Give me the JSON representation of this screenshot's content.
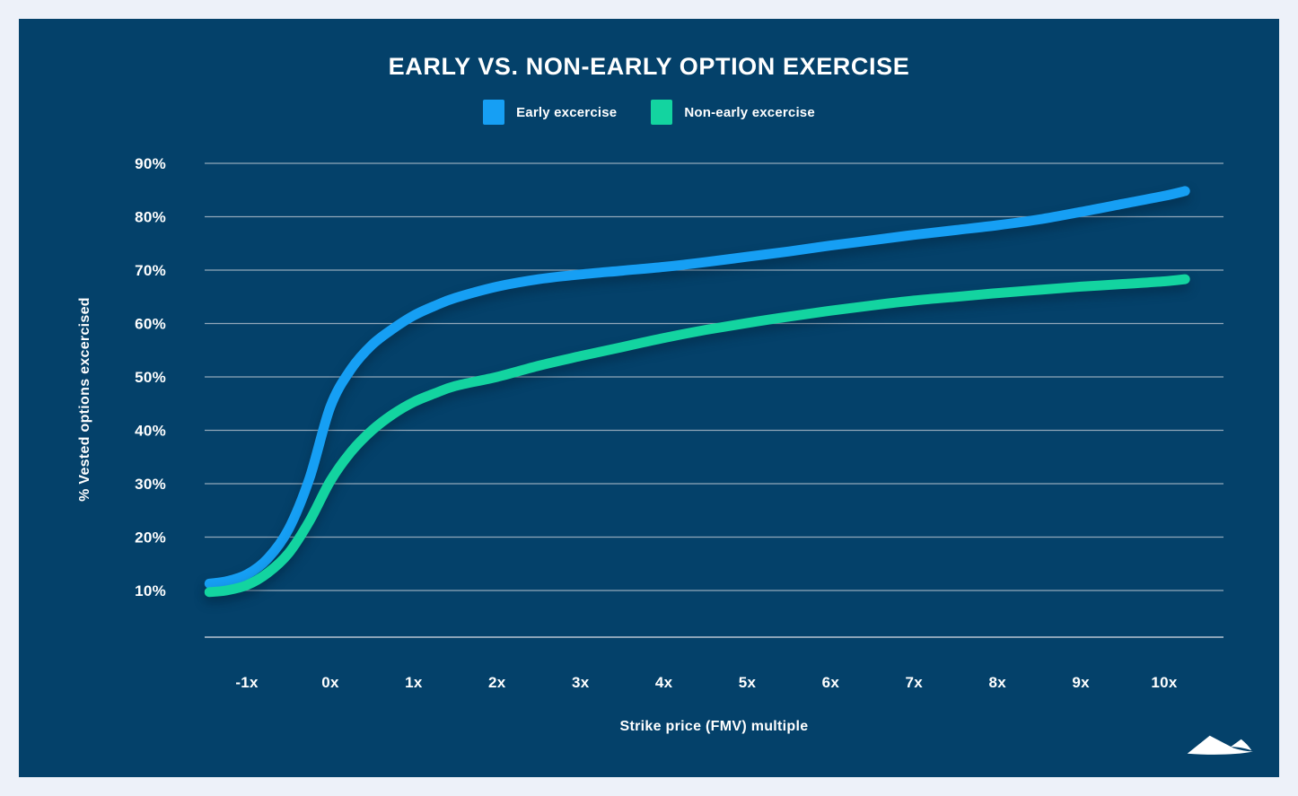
{
  "frame": {
    "background_color": "#edf1f9",
    "panel_color": "#04416a"
  },
  "header": {
    "title": "EARLY VS. NON-EARLY OPTION EXERCISE"
  },
  "chart_data": {
    "type": "line",
    "title": "EARLY VS. NON-EARLY OPTION EXERCISE",
    "xlabel": "Strike price (FMV) multiple",
    "ylabel": "% Vested options excercised",
    "x_ticks": [
      "-1x",
      "0x",
      "1x",
      "2x",
      "3x",
      "4x",
      "5x",
      "6x",
      "7x",
      "8x",
      "9x",
      "10x"
    ],
    "x_tick_values": [
      -1,
      0,
      1,
      2,
      3,
      4,
      5,
      6,
      7,
      8,
      9,
      10
    ],
    "y_ticks": [
      "10%",
      "20%",
      "30%",
      "40%",
      "50%",
      "60%",
      "70%",
      "80%",
      "90%"
    ],
    "y_tick_values": [
      10,
      20,
      30,
      40,
      50,
      60,
      70,
      80,
      90
    ],
    "xlim": [
      -1.6,
      10.5
    ],
    "ylim": [
      0,
      95
    ],
    "grid": "horizontal-only",
    "legend_position": "top-center",
    "colors": {
      "gridline": "#b6c2cf",
      "axis": "#c3cdd8",
      "tick_text": "#ffffff"
    },
    "series": [
      {
        "name": "Early excercise",
        "color": "#169ff4",
        "points": [
          [
            -1.45,
            11.3
          ],
          [
            -1.25,
            11.7
          ],
          [
            -1,
            13
          ],
          [
            -0.75,
            16
          ],
          [
            -0.5,
            21.5
          ],
          [
            -0.25,
            31
          ],
          [
            0,
            44.4
          ],
          [
            0.25,
            51.5
          ],
          [
            0.5,
            56
          ],
          [
            0.75,
            59
          ],
          [
            1,
            61.5
          ],
          [
            1.25,
            63.3
          ],
          [
            1.5,
            64.8
          ],
          [
            2,
            66.9
          ],
          [
            2.5,
            68.3
          ],
          [
            3,
            69.2
          ],
          [
            3.5,
            69.9
          ],
          [
            4,
            70.6
          ],
          [
            4.5,
            71.5
          ],
          [
            5,
            72.5
          ],
          [
            5.5,
            73.5
          ],
          [
            6,
            74.6
          ],
          [
            6.5,
            75.6
          ],
          [
            7,
            76.6
          ],
          [
            7.5,
            77.5
          ],
          [
            8,
            78.4
          ],
          [
            8.5,
            79.5
          ],
          [
            9,
            80.9
          ],
          [
            9.5,
            82.4
          ],
          [
            10,
            83.9
          ],
          [
            10.25,
            84.8
          ]
        ]
      },
      {
        "name": "Non-early excercise",
        "color": "#13d4a0",
        "points": [
          [
            -1.45,
            9.7
          ],
          [
            -1.25,
            10
          ],
          [
            -1,
            11
          ],
          [
            -0.75,
            13.3
          ],
          [
            -0.5,
            17
          ],
          [
            -0.25,
            23
          ],
          [
            0,
            30.5
          ],
          [
            0.25,
            36
          ],
          [
            0.5,
            40
          ],
          [
            0.75,
            43
          ],
          [
            1,
            45.3
          ],
          [
            1.25,
            46.9
          ],
          [
            1.5,
            48.3
          ],
          [
            2,
            50
          ],
          [
            2.5,
            52.1
          ],
          [
            3,
            53.9
          ],
          [
            3.5,
            55.6
          ],
          [
            4,
            57.3
          ],
          [
            4.5,
            58.8
          ],
          [
            5,
            60.1
          ],
          [
            5.5,
            61.3
          ],
          [
            6,
            62.4
          ],
          [
            6.5,
            63.4
          ],
          [
            7,
            64.3
          ],
          [
            7.5,
            65
          ],
          [
            8,
            65.7
          ],
          [
            8.5,
            66.3
          ],
          [
            9,
            66.9
          ],
          [
            9.5,
            67.4
          ],
          [
            10,
            67.9
          ],
          [
            10.25,
            68.3
          ]
        ]
      }
    ]
  },
  "logo": {
    "name": "mountain-logo"
  }
}
